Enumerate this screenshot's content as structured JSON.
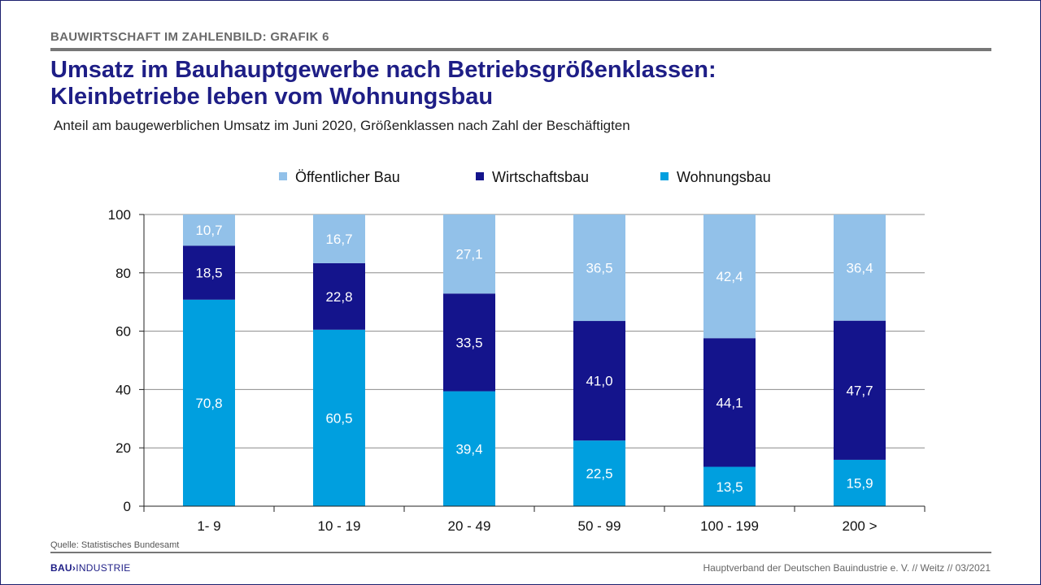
{
  "header": {
    "label": "BAUWIRTSCHAFT IM ZAHLENBILD: GRAFIK 6",
    "title_line1": "Umsatz im Bauhauptgewerbe nach Betriebsgrößenklassen:",
    "title_line2": "Kleinbetriebe leben vom Wohnungsbau",
    "subtitle": "Anteil am baugewerblichen Umsatz im Juni 2020, Größenklassen nach Zahl der Beschäftigten"
  },
  "chart_data": {
    "type": "bar",
    "stacked": true,
    "categories": [
      "1- 9",
      "10 - 19",
      "20 - 49",
      "50 - 99",
      "100 - 199",
      "200 >"
    ],
    "series": [
      {
        "name": "Wohnungsbau",
        "color": "#009fdf",
        "values": [
          70.8,
          60.5,
          39.4,
          22.5,
          13.5,
          15.9
        ],
        "labels": [
          "70,8",
          "60,5",
          "39,4",
          "22,5",
          "13,5",
          "15,9"
        ]
      },
      {
        "name": "Wirtschaftsbau",
        "color": "#14148c",
        "values": [
          18.5,
          22.8,
          33.5,
          41.0,
          44.1,
          47.7
        ],
        "labels": [
          "18,5",
          "22,8",
          "33,5",
          "41,0",
          "44,1",
          "47,7"
        ]
      },
      {
        "name": "Öffentlicher Bau",
        "color": "#92c1e9",
        "values": [
          10.7,
          16.7,
          27.1,
          36.5,
          42.4,
          36.4
        ],
        "labels": [
          "10,7",
          "16,7",
          "27,1",
          "36,5",
          "42,4",
          "36,4"
        ]
      }
    ],
    "legend_order": [
      "Öffentlicher Bau",
      "Wirtschaftsbau",
      "Wohnungsbau"
    ],
    "legend_position": "top",
    "ylim": [
      0,
      100
    ],
    "yticks": [
      0,
      20,
      40,
      60,
      80,
      100
    ],
    "grid": true
  },
  "footer": {
    "source": "Quelle: Statistisches Bundesamt",
    "logo_bold": "BAU",
    "logo_chevron": "›",
    "logo_rest": "INDUSTRIE",
    "credit": "Hauptverband  der Deutschen Bauindustrie e. V. // Weitz // 03/2021"
  }
}
